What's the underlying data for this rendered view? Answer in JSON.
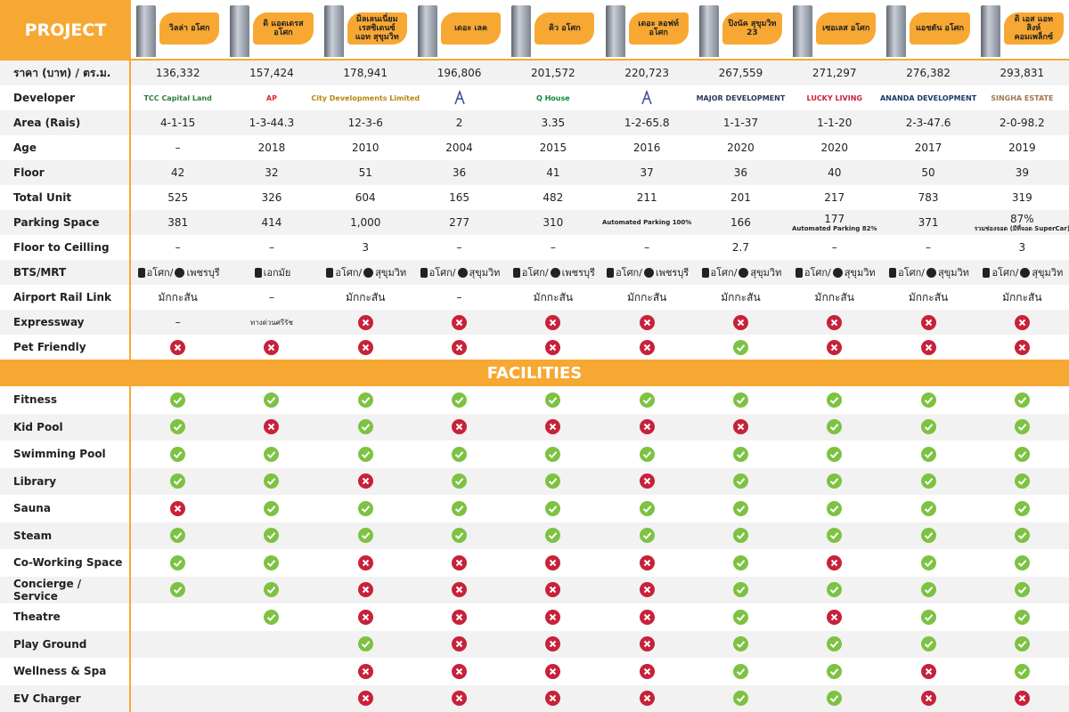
{
  "header": {
    "label": "PROJECT",
    "projects": [
      "วิลล่า อโศก",
      "ดิ แอดเดรส อโศก",
      "มิลเลนเนี่ยม เรสซิเดนซ์ แอท สุขุมวิท",
      "เดอะ เลค",
      "คิว อโศก",
      "เดอะ ลอฟท์ อโศก",
      "ปิงนัค สุขุมวิท 23",
      "เซอเลส อโศก",
      "แอชตัน อโศก",
      "ดิ เอส แอท สิงห์ คอมเพล็กซ์"
    ]
  },
  "rows": [
    {
      "label": "ราคา (บาท) / ตร.ม.",
      "values": [
        "136,332",
        "157,424",
        "178,941",
        "196,806",
        "201,572",
        "220,723",
        "267,559",
        "271,297",
        "276,382",
        "293,831"
      ]
    },
    {
      "label": "Developer",
      "kind": "developer",
      "values": [
        "TCC Capital Land",
        "AP",
        "City Developments Limited",
        null,
        "Q House",
        null,
        "MAJOR DEVELOPMENT",
        "LUCKY LIVING",
        "ANANDA DEVELOPMENT",
        "SINGHA ESTATE"
      ]
    },
    {
      "label": "Area (Rais)",
      "values": [
        "4-1-15",
        "1-3-44.3",
        "12-3-6",
        "2",
        "3.35",
        "1-2-65.8",
        "1-1-37",
        "1-1-20",
        "2-3-47.6",
        "2-0-98.2"
      ]
    },
    {
      "label": "Age",
      "values": [
        "–",
        2018,
        2010,
        2004,
        2015,
        2016,
        2020,
        2020,
        2017,
        2019
      ]
    },
    {
      "label": "Floor",
      "values": [
        42,
        32,
        51,
        36,
        41,
        37,
        36,
        40,
        50,
        39
      ]
    },
    {
      "label": "Total Unit",
      "values": [
        525,
        326,
        604,
        165,
        482,
        211,
        201,
        217,
        783,
        319
      ]
    },
    {
      "label": "Parking Space",
      "values": [
        381,
        414,
        "1,000",
        277,
        310,
        {
          "note": "Automated Parking 100%"
        },
        166,
        {
          "text": 177,
          "note": "Automated Parking 82%"
        },
        371,
        {
          "text": "87%",
          "note": "รวมช่องจอด (มีที่จอด SuperCar)"
        }
      ]
    },
    {
      "label": "Floor to Ceilling",
      "values": [
        "–",
        "–",
        3,
        "–",
        "–",
        "–",
        2.7,
        "–",
        "–",
        3
      ]
    },
    {
      "label": "BTS/MRT",
      "values": [
        {
          "bts": "อโศก/",
          "mrt": "เพชรบุรี"
        },
        {
          "bts": "เอกมัย"
        },
        {
          "bts": "อโศก/",
          "mrt": "สุขุมวิท"
        },
        {
          "bts": "อโศก/",
          "mrt": "สุขุมวิท"
        },
        {
          "bts": "อโศก/",
          "mrt": "เพชรบุรี"
        },
        {
          "bts": "อโศก/",
          "mrt": "เพชรบุรี"
        },
        {
          "bts": "อโศก/",
          "mrt": "สุขุมวิท"
        },
        {
          "bts": "อโศก/",
          "mrt": "สุขุมวิท"
        },
        {
          "bts": "อโศก/",
          "mrt": "สุขุมวิท"
        },
        {
          "bts": "อโศก/",
          "mrt": "สุขุมวิท"
        }
      ]
    },
    {
      "label": "Airport Rail Link",
      "values": [
        "มักกะสัน",
        "–",
        "มักกะสัน",
        "–",
        "มักกะสัน",
        "มักกะสัน",
        "มักกะสัน",
        "มักกะสัน",
        "มักกะสัน",
        "มักกะสัน"
      ]
    },
    {
      "label": "Expressway",
      "values": [
        "–",
        "ทางด่วนศรีรัช",
        false,
        false,
        false,
        false,
        false,
        false,
        false,
        false
      ]
    },
    {
      "label": "Pet Friendly",
      "values": [
        false,
        false,
        false,
        false,
        false,
        false,
        true,
        false,
        false,
        false
      ]
    }
  ],
  "facilities": {
    "title": "FACILITIES",
    "rows": [
      {
        "label": "Fitness",
        "values": [
          true,
          true,
          true,
          true,
          true,
          true,
          true,
          true,
          true,
          true
        ]
      },
      {
        "label": "Kid Pool",
        "values": [
          true,
          false,
          true,
          false,
          false,
          false,
          false,
          true,
          true,
          true
        ]
      },
      {
        "label": "Swimming Pool",
        "values": [
          true,
          true,
          true,
          true,
          true,
          true,
          true,
          true,
          true,
          true
        ]
      },
      {
        "label": "Library",
        "values": [
          true,
          true,
          false,
          true,
          true,
          false,
          true,
          true,
          true,
          true
        ]
      },
      {
        "label": "Sauna",
        "values": [
          false,
          true,
          true,
          true,
          true,
          true,
          true,
          true,
          true,
          true
        ]
      },
      {
        "label": "Steam",
        "values": [
          true,
          true,
          true,
          true,
          true,
          true,
          true,
          true,
          true,
          true
        ]
      },
      {
        "label": "Co-Working Space",
        "values": [
          true,
          true,
          false,
          false,
          false,
          false,
          true,
          false,
          true,
          true
        ]
      },
      {
        "label": "Concierge / Service",
        "values": [
          true,
          true,
          false,
          false,
          false,
          false,
          true,
          true,
          true,
          true
        ]
      },
      {
        "label": "Theatre",
        "values": [
          null,
          true,
          false,
          false,
          false,
          false,
          true,
          false,
          true,
          true
        ]
      },
      {
        "label": "Play Ground",
        "values": [
          null,
          null,
          true,
          false,
          false,
          false,
          true,
          true,
          true,
          true
        ]
      },
      {
        "label": "Wellness & Spa",
        "values": [
          null,
          null,
          false,
          false,
          false,
          false,
          true,
          true,
          false,
          true
        ]
      },
      {
        "label": "EV Charger",
        "values": [
          null,
          null,
          false,
          false,
          false,
          false,
          true,
          true,
          false,
          false
        ]
      }
    ]
  }
}
